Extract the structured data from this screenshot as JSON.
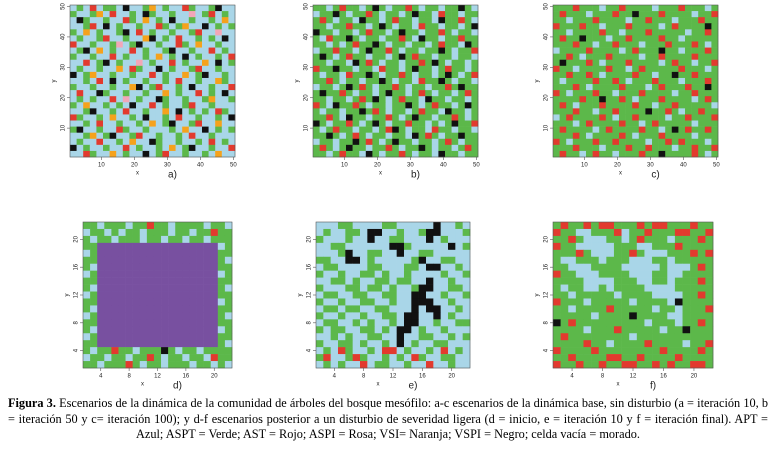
{
  "palette": {
    "B": "#a9d6e8",
    "G": "#5cb84a",
    "R": "#e23a2e",
    "P": "#f3a6b8",
    "O": "#f5a21c",
    "K": "#111111",
    "M": "#7850a0"
  },
  "chart_data": [
    {
      "type": "grid",
      "panel_label": "a)",
      "x_label": "x",
      "y_label": "y",
      "xlim": [
        0.5,
        50.5
      ],
      "ylim": [
        0.5,
        50.5
      ],
      "xticks": [
        10,
        20,
        30,
        40,
        50
      ],
      "yticks": [
        10,
        20,
        30,
        40,
        50
      ],
      "rows": [
        "BGBRBGGBKBBGOBGBBRGBBGKBB",
        "GBBGOBRBBGBKGBBGBBPBGRBGB",
        "BKGBBGBBRGBOBGBKBBGBBGBOB",
        "BBGRBKBGBBGBBRGBGOBBKBGBG",
        "GBOBGBBGKBRBGBBGBBGRBBPBB",
        "BGBBGRBBGBBOKBGBRBBGBGBKB",
        "RBBGBBGPBGKBBGBBRGBOBBGBB",
        "BGKBOBGBBRBGBBGKBBGBBRBGB",
        "GBBGBBRBGBBGBOBGBKBGBBGBR",
        "BBRBGKBGBBPBGBBRBGBBOBKBG",
        "BGBBGBBOBRGBBKBGBBGRBBGBB",
        "KBGOBBGBBGBBRBGBBOBGKBBGB",
        "BBGBRBKBGBBGBBGBRBBGBBOGB",
        "GBBGBBGBBOKBGRBBGBKBBGBBR",
        "BRBBKGBBGBBGBBOBGBBRBGBKB",
        "BGBGBBRBPBGBBKGBBGBBGOBBG",
        "GBOBBGBGBKBBRBGBBGRBBGBBB",
        "BBGKBBGBRBBGBBOBKBGBGBRGB",
        "RGBBGBOBBGBKBBGBRBBGBBGBK",
        "BBGBRBBGBBGBOBGKBBGRBBOBB",
        "GKBBGBBRGBBGBBBGBOBBKBGBG",
        "BBGOBGKBBGRBBGBBGBRBBGBBB",
        "BGBBRBBGBOBBKGBBGBBGBRBGB",
        "KBGBBGBBRBGBBGBOBGKBBGBBR",
        "BBRGBBOBGBBKBGRBBGBBGBOBB"
      ]
    },
    {
      "type": "grid",
      "panel_label": "b)",
      "x_label": "x",
      "y_label": "y",
      "xlim": [
        0.5,
        50.5
      ],
      "ylim": [
        0.5,
        50.5
      ],
      "xticks": [
        10,
        20,
        30,
        40,
        50
      ],
      "yticks": [
        10,
        20,
        30,
        40,
        50
      ],
      "rows": [
        "GGBGRGGBGKGBGGRGBGGBGGKGB",
        "BGGKGBGGRGBGGBGKGGBRGGBGG",
        "GRGBGGBKGGBGRGGBGGBKGGRGB",
        "GGBGGRGGBGKGBGGBRGGBGGBGK",
        "KGGBGGBGRGGBGKGGBGGRGBGGB",
        "GBRGGKGBGGBGGRGBKGGBGGRGG",
        "GGBGBGRGGKGBGGBGGBGRGGBKG",
        "BGGRGGBGKGGRGBGGBGGKGBGGR",
        "GKGBGRGGBGGBGKGRGGBGGBGGB",
        "GGBGGBKGRGBGGBGGRGKGBGGBG",
        "RGGKGGBGGBRGGBGKGGBGRGGBG",
        "GBGGBRGGKGBGGRGBGGBGKGBGR",
        "GGRGBGGBGGKGBGGBRGGKGBGGB",
        "BGGBGKGRGBGGRGBGGBGGRGKGG",
        "GKGGRGBGGBGKGGBGRGBGGBGRG",
        "GGBGGBGRGKGBGRGGBKGGBGGBG",
        "RGBKGGRGBGGBGGKGBGRGGBGKG",
        "GBGGBGGKGRGBGGBGRGGBKGGBG",
        "GGRGBKGGBGGRGBGKGGBGGRGBG",
        "KGBGGRGBGKGBGGRGGBGBGKGGR",
        "GBGRGGBGGBGRKGBGGBRGGBGGB",
        "GGKGBGRGBGGBGGBKGRGBGGKGG",
        "BGGBGGKGRGBGKGGBGGBGRGBGG",
        "GRGBGKGGBGGRGBGGKGBGGBGRG",
        "GGBGRGGBKGBGGRGBGGBKGGBGG"
      ]
    },
    {
      "type": "grid",
      "panel_label": "c)",
      "x_label": "x",
      "y_label": "y",
      "xlim": [
        0.5,
        50.5
      ],
      "ylim": [
        0.5,
        50.5
      ],
      "xticks": [
        10,
        20,
        30,
        40,
        50
      ],
      "yticks": [
        10,
        20,
        30,
        40,
        50
      ],
      "rows": [
        "GGGRGGGBGGRGGGGBGGGRGGGBG",
        "GRGGGBGGGRGGKGGGRGGGGBGGR",
        "GGBGGGRGGGGBGGRGGGBGGGRGG",
        "RGGGRGGBGGGRGGGGBGRGGGGKG",
        "GGBGGGGRGGBGGGRGGGGGBGGRG",
        "GRGGKGGGBGGRGGGGRGGBGGGGG",
        "GGGRGGBGGRGGGBGGGRGGGRGBG",
        "BGGGGRGGGGBGRGGGKGGBGGGRG",
        "GGRGBGGGRGGGGBGGRGGGGRGGG",
        "GKGGGRGBGGGRGGGGBGRGGBGGR",
        "RGGBGGGGRGGBGRGGGGGRGGGBG",
        "GGRGGRGBGGGGRGGBGGKGGRGGG",
        "GBGGGGRGGRGBGGGRGGGBGGGRG",
        "GGGRGBGGGGRGGGBGRGGGRGGKG",
        "RGBGGGRGGBGGGRGGGGBGGRGGG",
        "GGGGRGGKGGRGBGGGRGGGGBGRG",
        "GRGBGGGRGGGGRGGBGGRGGGGGB",
        "GGGRGGBGGRGGGGKGGRGBGGRGG",
        "BGRGGGGRGBGGRGGGGBGGRGGGR",
        "GGGBGRGGGGRGGBGRGGGGGBGGG",
        "GRGGGGBGRGGGGRGGBGKGRGGRG",
        "GGGRGBGGGGRGBGGGRGGGGBGGG",
        "RGBGGGRGGRGGGGBGGRGRGGGBG",
        "GGGRGGGBGGGRGGRGGGBGGRGGR",
        "GRGGBGRGGBGGGRGGKGGGGRGBG"
      ]
    },
    {
      "type": "grid",
      "panel_label": "d)",
      "x_label": "x",
      "y_label": "y",
      "xlim": [
        1.5,
        22.5
      ],
      "ylim": [
        1.5,
        22.5
      ],
      "xticks": [
        4,
        8,
        12,
        16,
        20
      ],
      "yticks": [
        4,
        8,
        12,
        16,
        20
      ],
      "rows": [
        "GGBGGGBGGRGGBGGGGBGGB",
        "BGGBGBGGBGGGBGGBGGRGG",
        "GBGGBGGGBGGBGGBGGBGGG",
        "GGMMMMMMMMMMMMMMMMMBG",
        "BGMMMMMMMMMMMMMMMMMGG",
        "GGMMMMMMMMMMMMMMMMMGB",
        "GBMMMMMMMMMMMMMMMMMGG",
        "BGMMMMMMMMMMMMMMMMMBG",
        "GGMMMMMMMMMMMMMMMMMGG",
        "GBMMMMMMMMMMMMMMMMMGB",
        "BGMMMMMMMMMMMMMMMMMGG",
        "GGMMMMMMMMMMMMMMMMMBG",
        "GBMMMMMMMMMMMMMMMMMGG",
        "BGMMMMMMMMMMMMMMMMMGB",
        "GGMMMMMMMMMMMMMMMMMGG",
        "GBMMMMMMMMMMMMMMMMMBG",
        "BGMMMMMMMMMMMMMMMMMGG",
        "GGMMMMMMMMMMMMMMMMMGB",
        "GBGGRGGBGGGKGBGGBGGGG",
        "BGGBGGBGGRGBGGBGGBRGG",
        "GGBGGGRGBGGBGGGBGGBGB"
      ]
    },
    {
      "type": "grid",
      "panel_label": "e)",
      "x_label": "x",
      "y_label": "y",
      "xlim": [
        1.5,
        22.5
      ],
      "ylim": [
        1.5,
        22.5
      ],
      "xticks": [
        4,
        8,
        12,
        16,
        20
      ],
      "yticks": [
        4,
        8,
        12,
        16,
        20
      ],
      "rows": [
        "BBBGGBBBBGGBBBBBKBBGB",
        "BGBBGGBKKBBGBBGKKBBBG",
        "GBBBGBBKBBGGBBBKBGBBB",
        "BBGGBBBBBBKKGBBBBBKBG",
        "BBBGKBBGGBBKBBGGBBBBB",
        "GGBBKKBGBBBBBGKBBGGBB",
        "BGGBBBBGGBBBGGBKKBBGB",
        "GBBGBBGGBGBBGBBBBGBBG",
        "BBGGBGBBGGBGGBBKBBGBB",
        "GBBBGGBGGBGBBGKKBBGGB",
        "BGGBBGGBBGGBBKKBBGBBG",
        "GBBGBBGGBBGBBKKKBBGBB",
        "BGGBGGBBGGBBBKBKKBBGB",
        "GBBGBBGBBGGBKKBBKBGBB",
        "BGGBBGBGBBGBKKBBGBBGG",
        "GBGGBBGGBGBKKBGBBGBBB",
        "BBGBGBBGGBBKBBGGBBGBG",
        "GBBGGBGBBGBKBGBBGGBBB",
        "BGBRGBBGBRRBGBBGBRBGB",
        "GRBBGRGBBGBGBRGBBGGBB",
        "BGBGBBRBGGBBGBBRBBGBB"
      ]
    },
    {
      "type": "grid",
      "panel_label": "f)",
      "x_label": "x",
      "y_label": "y",
      "xlim": [
        1.5,
        22.5
      ],
      "ylim": [
        1.5,
        22.5
      ],
      "xticks": [
        4,
        8,
        12,
        16,
        20
      ],
      "yticks": [
        4,
        8,
        12,
        16,
        20
      ],
      "rows": [
        "GRGGRGRRGGGRGRRGGGRGG",
        "RGGBBGGGRBGGRGGGRRGGR",
        "GGRGBBBGGBGRGGGBGGGRG",
        "RGGBBBBBGGGBBGGGRGGGG",
        "GGGRGBBBGGRGBBBGGGRGR",
        "GBBGGGBGGGBBBGGBGGGGG",
        "GGBBBGGGGBBBBBGBBBGRG",
        "RGGBBBGGGGBBBGGBBGGGG",
        "GGGGBBBBGGGBBGGBGGGRG",
        "GBGGBBGBGGGGBBBBGGGGG",
        "GGBGGGGGBGGGGBBBBGGRG",
        "RGGGBGGGGGBGGGGBKGGGG",
        "GGBGGGGRGGGGGBGGBGGGR",
        "GGGGGBGGGGKGGGGBBGGGG",
        "KGRGGGGGGGGGBGGGBGGRG",
        "GGGGBGGGRGGGGGBGGKGGG",
        "GRGGGGGGGGBGGGGGGGGGG",
        "GGGGRGGBGGGGRGGGGBGGR",
        "RGGGGRGGGGGGGGRGGGGRG",
        "GGRGGGGRRGGRGGGGRGGGG",
        "RGGRGGRGGRRGGRGRGGRRG"
      ]
    }
  ],
  "caption": {
    "label": "Figura 3.",
    "text": "Escenarios de la dinámica de la comunidad de árboles del bosque mesófilo: a-c escenarios de la dinámica base, sin disturbio (a = iteración 10, b = iteración 50 y c= iteración 100); y d-f escenarios posterior a un disturbio de severidad ligera (d = inicio, e = iteración 10 y f = iteración final). APT = Azul; ASPT = Verde; AST = Rojo; ASPI = Rosa; VSI= Naranja; VSPI = Negro; celda vacía = morado."
  }
}
